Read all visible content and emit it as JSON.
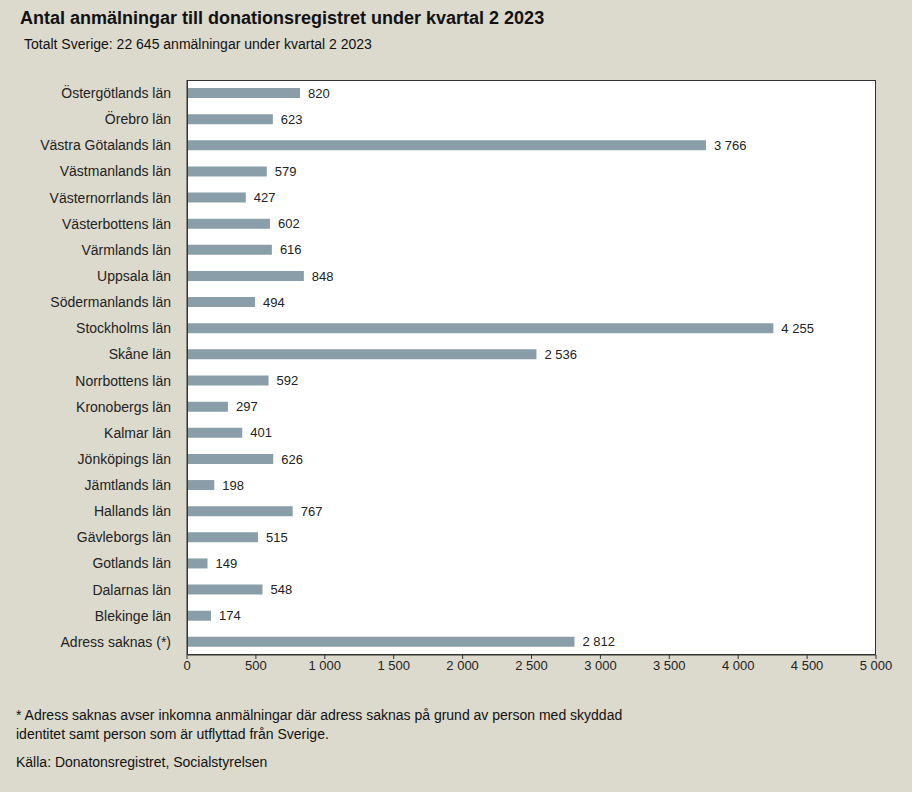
{
  "chart_data": {
    "type": "bar",
    "title": "Antal anmälningar till donationsregistret under kvartal 2 2023",
    "subtitle": "Totalt Sverige: 22 645 anmälningar under kvartal 2 2023",
    "annotations": [
      "* Adress saknas avser inkomna anmälningar där adress saknas på grund av person med skyddad identitet samt person som är utflyttad från Sverige.",
      "Källa: Donatonsregistret, Socialstyrelsen"
    ],
    "categories": [
      "Östergötlands län",
      "Örebro län",
      "Västra Götalands län",
      "Västmanlands län",
      "Västernorrlands län",
      "Västerbottens län",
      "Värmlands län",
      "Uppsala län",
      "Södermanlands län",
      "Stockholms län",
      "Skåne län",
      "Norrbottens län",
      "Kronobergs län",
      "Kalmar län",
      "Jönköpings län",
      "Jämtlands län",
      "Hallands län",
      "Gävleborgs län",
      "Gotlands län",
      "Dalarnas län",
      "Blekinge län",
      "Adress saknas (*)"
    ],
    "values": [
      820,
      623,
      3766,
      579,
      427,
      602,
      616,
      848,
      494,
      4255,
      2536,
      592,
      297,
      401,
      626,
      198,
      767,
      515,
      149,
      548,
      174,
      2812
    ],
    "value_labels": [
      "820",
      "623",
      "3 766",
      "579",
      "427",
      "602",
      "616",
      "848",
      "494",
      "4 255",
      "2 536",
      "592",
      "297",
      "401",
      "626",
      "198",
      "767",
      "515",
      "149",
      "548",
      "174",
      "2 812"
    ],
    "color": "#8a9ea9",
    "orientation": "horizontal",
    "data_labels": true,
    "grid": false,
    "xlim": [
      0,
      5000
    ],
    "xticks": [
      0,
      500,
      {
        "value": 1000,
        "label": "1 000"
      },
      {
        "value": 1500,
        "label": "1 500"
      },
      {
        "value": 2000,
        "label": "2 000"
      },
      {
        "value": 2500,
        "label": "2 500"
      },
      {
        "value": 3000,
        "label": "3 000"
      },
      {
        "value": 3500,
        "label": "3 500"
      },
      {
        "value": 4000,
        "label": "4 000"
      },
      {
        "value": 4500,
        "label": "4 500"
      },
      {
        "value": 5000,
        "label": "5 000"
      }
    ]
  }
}
